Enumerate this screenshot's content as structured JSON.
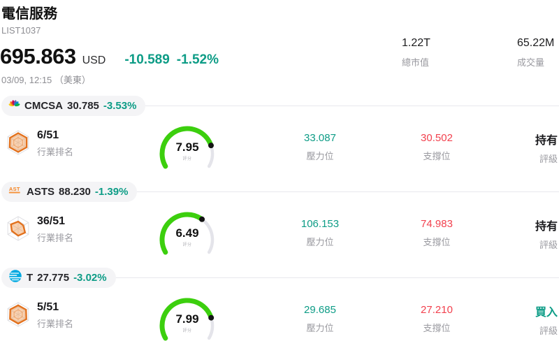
{
  "header": {
    "title": "電信服務",
    "list_id": "LIST1037",
    "price": "695.863",
    "currency": "USD",
    "change_abs": "-10.589",
    "change_pct": "-1.52%",
    "datetime": "03/09, 12:15 （美東）",
    "stats": [
      {
        "value": "1.22T",
        "label": "總市值"
      },
      {
        "value": "65.22M",
        "label": "成交量"
      }
    ]
  },
  "labels": {
    "rank": "行業排名",
    "score": "評分",
    "pressure": "壓力位",
    "support": "支撐位",
    "rating": "評級"
  },
  "gauge": {
    "max": 10
  },
  "colors": {
    "up_teal": "#0d9c86",
    "down_red": "#f2414e",
    "gauge_green": "#3ccf0e",
    "gauge_track": "#e4e4ea",
    "gauge_dot": "#141414",
    "rating_buy": "#0d9c86"
  },
  "stocks": [
    {
      "symbol": "CMCSA",
      "price": "30.785",
      "change": "-3.53%",
      "rank": "6/51",
      "score": 7.95,
      "score_text": "7.95",
      "pressure": "33.087",
      "support": "30.502",
      "rating": "持有",
      "rating_color": "hold",
      "logo": "cmcsa-peacock-icon"
    },
    {
      "symbol": "ASTS",
      "price": "88.230",
      "change": "-1.39%",
      "rank": "36/51",
      "score": 6.49,
      "score_text": "6.49",
      "pressure": "106.153",
      "support": "74.983",
      "rating": "持有",
      "rating_color": "hold",
      "logo": "asts-logo-icon"
    },
    {
      "symbol": "T",
      "price": "27.775",
      "change": "-3.02%",
      "rank": "5/51",
      "score": 7.99,
      "score_text": "7.99",
      "pressure": "29.685",
      "support": "27.210",
      "rating": "買入",
      "rating_color": "buy",
      "logo": "att-globe-icon"
    }
  ]
}
